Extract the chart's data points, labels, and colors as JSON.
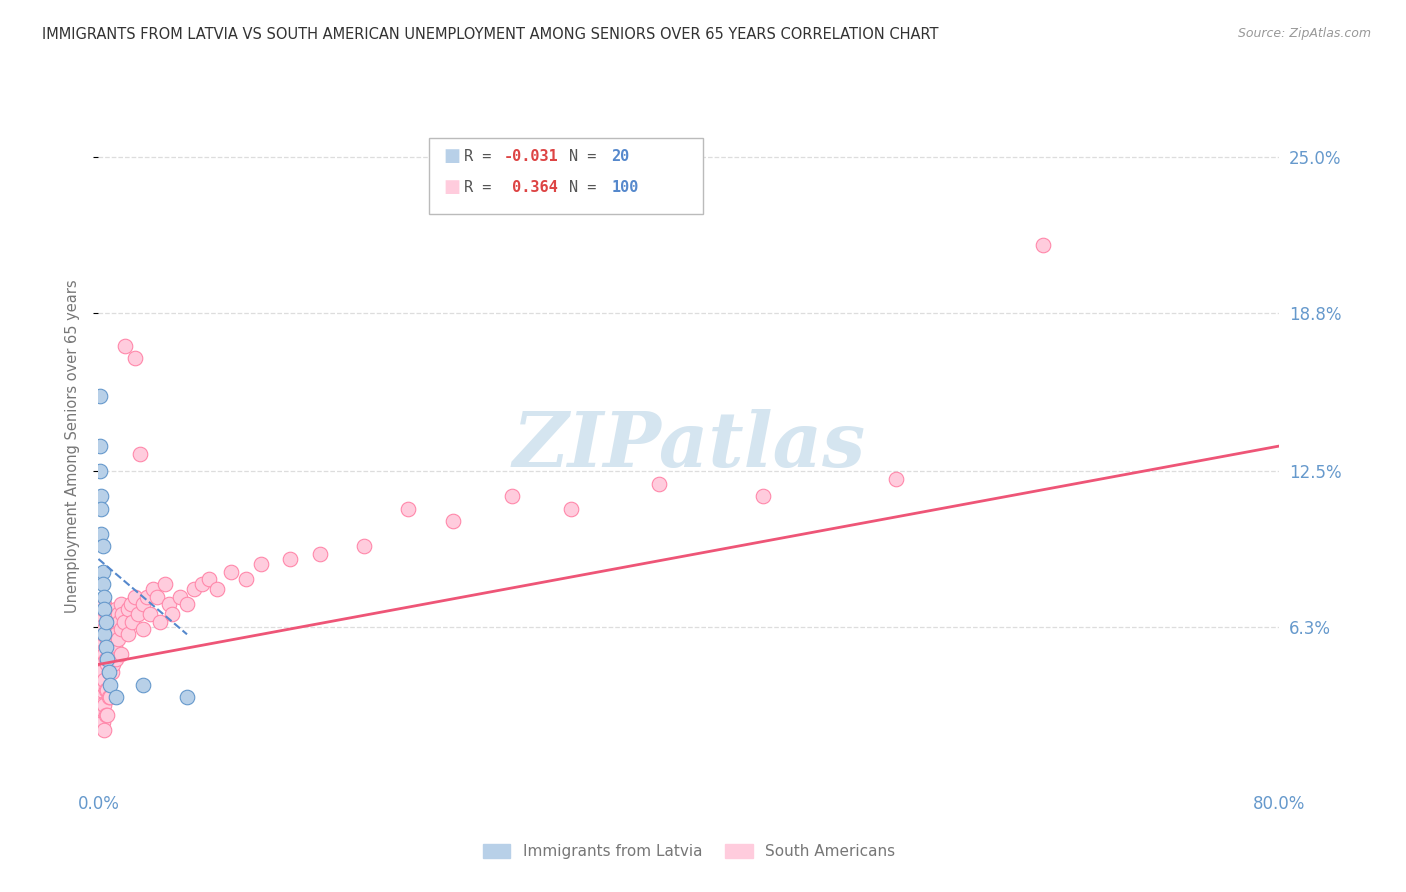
{
  "title": "IMMIGRANTS FROM LATVIA VS SOUTH AMERICAN UNEMPLOYMENT AMONG SENIORS OVER 65 YEARS CORRELATION CHART",
  "source": "Source: ZipAtlas.com",
  "ylabel": "Unemployment Among Seniors over 65 years",
  "xlim": [
    0.0,
    0.8
  ],
  "ylim": [
    0.0,
    0.27
  ],
  "ytick_vals": [
    0.063,
    0.125,
    0.188,
    0.25
  ],
  "ytick_labels": [
    "6.3%",
    "12.5%",
    "18.8%",
    "25.0%"
  ],
  "series1_color": "#b8d0e8",
  "series1_edge": "#6699cc",
  "series2_color": "#ffccdd",
  "series2_edge": "#ff88aa",
  "trendline1_color": "#5588cc",
  "trendline2_color": "#ee5577",
  "watermark": "ZIPatlas",
  "watermark_color": "#d5e5f0",
  "background_color": "#ffffff",
  "grid_color": "#dddddd",
  "title_color": "#333333",
  "tick_color": "#6699cc",
  "series1_points": [
    [
      0.001,
      0.155
    ],
    [
      0.001,
      0.135
    ],
    [
      0.001,
      0.125
    ],
    [
      0.002,
      0.115
    ],
    [
      0.002,
      0.11
    ],
    [
      0.002,
      0.1
    ],
    [
      0.003,
      0.095
    ],
    [
      0.003,
      0.085
    ],
    [
      0.003,
      0.08
    ],
    [
      0.004,
      0.075
    ],
    [
      0.004,
      0.07
    ],
    [
      0.004,
      0.06
    ],
    [
      0.005,
      0.065
    ],
    [
      0.005,
      0.055
    ],
    [
      0.006,
      0.05
    ],
    [
      0.007,
      0.045
    ],
    [
      0.008,
      0.04
    ],
    [
      0.012,
      0.035
    ],
    [
      0.03,
      0.04
    ],
    [
      0.06,
      0.035
    ]
  ],
  "series2_points": [
    [
      0.001,
      0.065
    ],
    [
      0.001,
      0.06
    ],
    [
      0.001,
      0.055
    ],
    [
      0.001,
      0.05
    ],
    [
      0.001,
      0.045
    ],
    [
      0.001,
      0.04
    ],
    [
      0.002,
      0.068
    ],
    [
      0.002,
      0.058
    ],
    [
      0.002,
      0.052
    ],
    [
      0.002,
      0.045
    ],
    [
      0.002,
      0.038
    ],
    [
      0.002,
      0.032
    ],
    [
      0.003,
      0.07
    ],
    [
      0.003,
      0.06
    ],
    [
      0.003,
      0.05
    ],
    [
      0.003,
      0.04
    ],
    [
      0.003,
      0.03
    ],
    [
      0.003,
      0.025
    ],
    [
      0.004,
      0.072
    ],
    [
      0.004,
      0.062
    ],
    [
      0.004,
      0.052
    ],
    [
      0.004,
      0.042
    ],
    [
      0.004,
      0.032
    ],
    [
      0.004,
      0.022
    ],
    [
      0.005,
      0.07
    ],
    [
      0.005,
      0.06
    ],
    [
      0.005,
      0.05
    ],
    [
      0.005,
      0.038
    ],
    [
      0.005,
      0.028
    ],
    [
      0.006,
      0.068
    ],
    [
      0.006,
      0.058
    ],
    [
      0.006,
      0.048
    ],
    [
      0.006,
      0.038
    ],
    [
      0.006,
      0.028
    ],
    [
      0.007,
      0.065
    ],
    [
      0.007,
      0.055
    ],
    [
      0.007,
      0.045
    ],
    [
      0.007,
      0.035
    ],
    [
      0.008,
      0.065
    ],
    [
      0.008,
      0.055
    ],
    [
      0.008,
      0.045
    ],
    [
      0.008,
      0.035
    ],
    [
      0.009,
      0.065
    ],
    [
      0.009,
      0.055
    ],
    [
      0.009,
      0.045
    ],
    [
      0.01,
      0.068
    ],
    [
      0.01,
      0.058
    ],
    [
      0.01,
      0.048
    ],
    [
      0.011,
      0.065
    ],
    [
      0.011,
      0.055
    ],
    [
      0.012,
      0.07
    ],
    [
      0.012,
      0.06
    ],
    [
      0.012,
      0.05
    ],
    [
      0.013,
      0.068
    ],
    [
      0.013,
      0.058
    ],
    [
      0.014,
      0.065
    ],
    [
      0.015,
      0.072
    ],
    [
      0.015,
      0.062
    ],
    [
      0.015,
      0.052
    ],
    [
      0.016,
      0.068
    ],
    [
      0.017,
      0.065
    ],
    [
      0.018,
      0.175
    ],
    [
      0.02,
      0.07
    ],
    [
      0.02,
      0.06
    ],
    [
      0.022,
      0.072
    ],
    [
      0.023,
      0.065
    ],
    [
      0.025,
      0.17
    ],
    [
      0.025,
      0.075
    ],
    [
      0.027,
      0.068
    ],
    [
      0.028,
      0.132
    ],
    [
      0.03,
      0.072
    ],
    [
      0.03,
      0.062
    ],
    [
      0.033,
      0.075
    ],
    [
      0.035,
      0.068
    ],
    [
      0.037,
      0.078
    ],
    [
      0.04,
      0.075
    ],
    [
      0.042,
      0.065
    ],
    [
      0.045,
      0.08
    ],
    [
      0.048,
      0.072
    ],
    [
      0.05,
      0.068
    ],
    [
      0.055,
      0.075
    ],
    [
      0.06,
      0.072
    ],
    [
      0.065,
      0.078
    ],
    [
      0.07,
      0.08
    ],
    [
      0.075,
      0.082
    ],
    [
      0.08,
      0.078
    ],
    [
      0.09,
      0.085
    ],
    [
      0.1,
      0.082
    ],
    [
      0.11,
      0.088
    ],
    [
      0.13,
      0.09
    ],
    [
      0.15,
      0.092
    ],
    [
      0.18,
      0.095
    ],
    [
      0.21,
      0.11
    ],
    [
      0.24,
      0.105
    ],
    [
      0.28,
      0.115
    ],
    [
      0.32,
      0.11
    ],
    [
      0.38,
      0.12
    ],
    [
      0.45,
      0.115
    ],
    [
      0.54,
      0.122
    ],
    [
      0.64,
      0.215
    ]
  ],
  "trend1_x": [
    0.0,
    0.06
  ],
  "trend1_y": [
    0.09,
    0.06
  ],
  "trend2_x": [
    0.0,
    0.8
  ],
  "trend2_y": [
    0.048,
    0.135
  ]
}
